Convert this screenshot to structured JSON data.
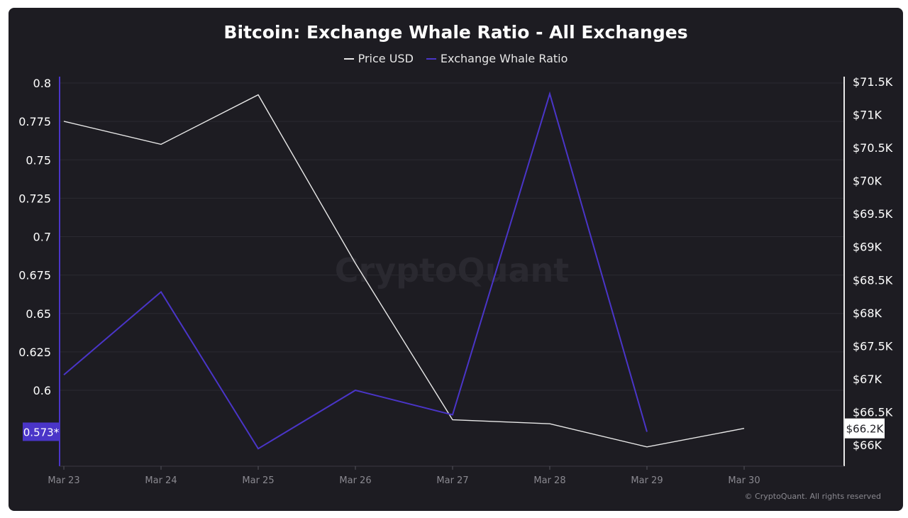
{
  "chart_data": {
    "type": "line",
    "title": "Bitcoin: Exchange Whale Ratio - All Exchanges",
    "categories": [
      "Mar 23",
      "Mar 24",
      "Mar 25",
      "Mar 26",
      "Mar 27",
      "Mar 28",
      "Mar 29",
      "Mar 30"
    ],
    "series": [
      {
        "name": "Price USD",
        "axis": "right",
        "color": "#e8e8e8",
        "values": [
          70900,
          70550,
          71300,
          68750,
          66380,
          66320,
          65970,
          66250
        ]
      },
      {
        "name": "Exchange Whale Ratio",
        "axis": "left",
        "color": "#4a35c8",
        "values": [
          0.61,
          0.664,
          0.562,
          0.6,
          0.584,
          0.793,
          0.573,
          null
        ]
      }
    ],
    "y_left": {
      "ticks": [
        "0.8",
        "0.775",
        "0.75",
        "0.725",
        "0.7",
        "0.675",
        "0.65",
        "0.625",
        "0.6"
      ],
      "tick_values": [
        0.8,
        0.775,
        0.75,
        0.725,
        0.7,
        0.675,
        0.65,
        0.625,
        0.6
      ],
      "ylim": [
        0.55,
        0.8
      ],
      "current_label": "0.573*",
      "current_value": 0.573
    },
    "y_right": {
      "ticks": [
        "$71.5K",
        "$71K",
        "$70.5K",
        "$70K",
        "$69.5K",
        "$69K",
        "$68.5K",
        "$68K",
        "$67.5K",
        "$67K",
        "$66.5K",
        "$66K"
      ],
      "tick_values": [
        71500,
        71000,
        70500,
        70000,
        69500,
        69000,
        68500,
        68000,
        67500,
        67000,
        66500,
        66000
      ],
      "ylim": [
        65700,
        71500
      ],
      "current_label": "$66.2K",
      "current_value": 66250
    },
    "watermark": "CryptoQuant",
    "copyright": "© CryptoQuant. All rights reserved",
    "grid": true,
    "legend_position": "top-center"
  }
}
